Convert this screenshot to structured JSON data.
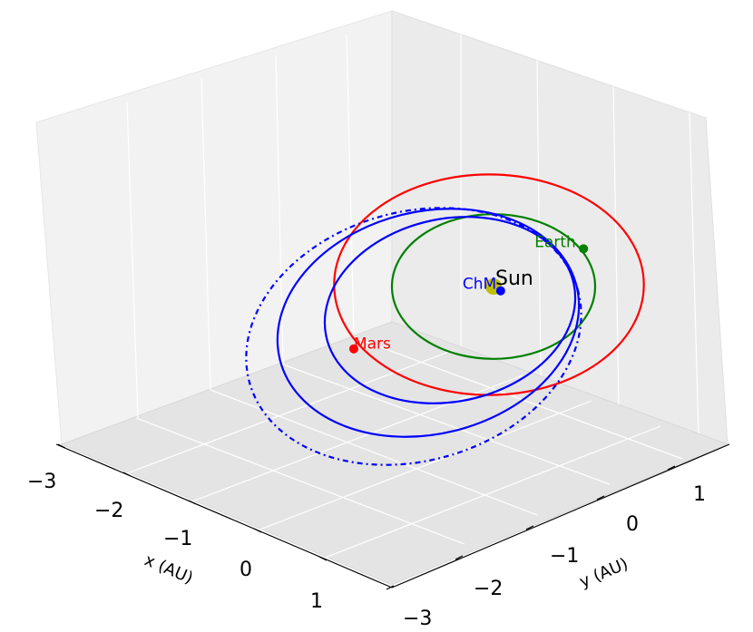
{
  "chart_data": {
    "type": "line",
    "projection": "3d",
    "title": "",
    "xlabel": "x (AU)",
    "ylabel": "y (AU)",
    "x_ticks": [
      "−3",
      "−2",
      "−1",
      "0",
      "1"
    ],
    "y_ticks": [
      "−3",
      "−2",
      "−1",
      "0",
      "1"
    ],
    "xlim": [
      -3,
      1.5
    ],
    "ylim": [
      -3,
      1.5
    ],
    "grid": true,
    "orbits": [
      {
        "key": "earth",
        "color": "#008000",
        "style": "solid",
        "a": 1.0,
        "e": 0.0
      },
      {
        "key": "mars",
        "color": "#ff0000",
        "style": "solid",
        "a": 1.524,
        "e": 0.0
      },
      {
        "key": "chm-outer",
        "color": "#0000ff",
        "style": "solid",
        "a": 1.6,
        "e": 0.4
      },
      {
        "key": "chm-inner",
        "color": "#0000ff",
        "style": "solid",
        "a": 1.3,
        "e": 0.28
      },
      {
        "key": "chm-transfer",
        "color": "#0000ff",
        "style": "dashdot",
        "a": 1.8,
        "e": 0.45
      }
    ],
    "bodies": [
      {
        "key": "sun",
        "label": "Sun",
        "color": "#bfbf00",
        "x": 0,
        "y": 0
      },
      {
        "key": "earth",
        "label": "Earth",
        "color": "#008000",
        "x": -0.1,
        "y": 1.0
      },
      {
        "key": "mars",
        "label": "Mars",
        "color": "#ff0000",
        "x": 0.4,
        "y": -1.45
      },
      {
        "key": "chm",
        "label": "ChM",
        "color": "#0000ff",
        "x": -2.1,
        "y": -0.8
      }
    ]
  }
}
